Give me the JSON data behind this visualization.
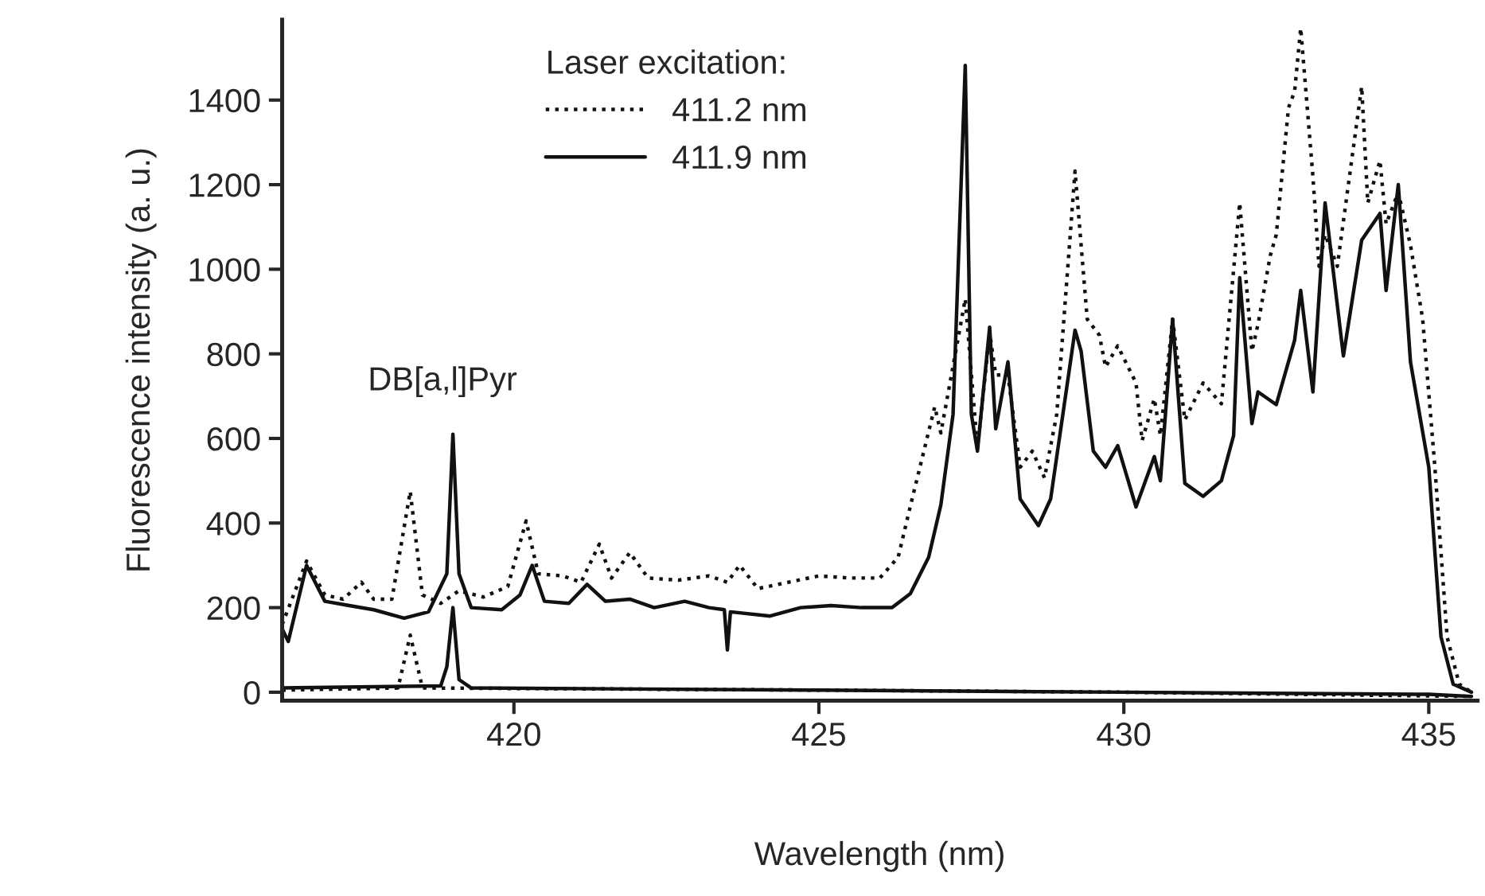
{
  "chart_data": {
    "type": "line",
    "xlabel": "Wavelength (nm)",
    "ylabel": "Fluorescence intensity (a. u.)",
    "legend_title": "Laser excitation:",
    "legend": "top",
    "grid": false,
    "xlim": [
      416.2,
      435.8
    ],
    "xticks": [
      420,
      425,
      430,
      435
    ],
    "ylim": [
      -20,
      1590
    ],
    "yticks": [
      0,
      200,
      400,
      600,
      800,
      1000,
      1200,
      1400
    ],
    "annotations": [
      "DB[a,l]Pyr"
    ],
    "series": [
      {
        "name": "411.2 nm",
        "color": "#111111",
        "line_style": "dotted",
        "x": [
          416.2,
          416.6,
          416.9,
          417.2,
          417.5,
          417.7,
          418.0,
          418.3,
          418.5,
          418.8,
          419.1,
          419.5,
          419.9,
          420.2,
          420.4,
          420.8,
          421.1,
          421.4,
          421.6,
          421.9,
          422.2,
          422.7,
          423.2,
          423.5,
          423.7,
          424.0,
          424.5,
          425.0,
          425.5,
          426.0,
          426.3,
          426.5,
          426.9,
          427.0,
          427.3,
          427.4,
          427.6,
          427.8,
          427.9,
          428.1,
          428.3,
          428.5,
          428.7,
          428.9,
          429.2,
          429.4,
          429.6,
          429.7,
          429.9,
          430.2,
          430.3,
          430.5,
          430.6,
          430.8,
          431.0,
          431.3,
          431.6,
          431.9,
          432.1,
          432.2,
          432.4,
          432.5,
          432.7,
          432.8,
          432.9,
          433.1,
          433.2,
          433.3,
          433.5,
          433.9,
          434.0,
          434.2,
          434.3,
          434.5,
          434.7,
          434.9,
          435.1,
          435.3,
          435.5,
          435.7
        ],
        "values": [
          160,
          310,
          230,
          220,
          260,
          220,
          220,
          475,
          230,
          210,
          240,
          225,
          250,
          405,
          280,
          275,
          260,
          350,
          270,
          330,
          270,
          265,
          275,
          260,
          300,
          245,
          260,
          275,
          270,
          270,
          319,
          440,
          675,
          613,
          850,
          930,
          576,
          850,
          750,
          750,
          532,
          570,
          507,
          657,
          1232,
          882,
          844,
          769,
          819,
          731,
          595,
          694,
          607,
          882,
          644,
          731,
          682,
          1157,
          806,
          870,
          1032,
          1082,
          1382,
          1420,
          1570,
          1220,
          1007,
          1082,
          1007,
          1432,
          1157,
          1257,
          1107,
          1182,
          1057,
          882,
          532,
          131,
          19,
          0
        ]
      },
      {
        "name": "411.9 nm",
        "color": "#111111",
        "line_style": "solid",
        "x": [
          416.2,
          416.3,
          416.6,
          416.9,
          417.3,
          417.7,
          418.2,
          418.6,
          418.9,
          419.0,
          419.1,
          419.3,
          419.8,
          420.1,
          420.3,
          420.5,
          420.9,
          421.2,
          421.5,
          421.9,
          422.3,
          422.8,
          423.2,
          423.45,
          423.5,
          423.55,
          424.2,
          424.7,
          425.2,
          425.7,
          426.2,
          426.5,
          426.8,
          427.0,
          427.2,
          427.4,
          427.5,
          427.6,
          427.8,
          427.9,
          428.1,
          428.3,
          428.6,
          428.8,
          429.2,
          429.3,
          429.5,
          429.7,
          429.9,
          430.2,
          430.5,
          430.6,
          430.8,
          431.0,
          431.3,
          431.6,
          431.8,
          431.9,
          432.1,
          432.2,
          432.5,
          432.8,
          432.9,
          433.1,
          433.3,
          433.6,
          433.9,
          434.2,
          434.3,
          434.5,
          434.7,
          435.0,
          435.2,
          435.4,
          435.7
        ],
        "values": [
          150,
          120,
          300,
          215,
          205,
          195,
          175,
          190,
          280,
          610,
          280,
          200,
          195,
          230,
          300,
          215,
          210,
          255,
          215,
          220,
          200,
          215,
          200,
          195,
          100,
          190,
          180,
          200,
          205,
          200,
          200,
          233,
          319,
          443,
          657,
          1482,
          657,
          570,
          863,
          623,
          781,
          457,
          394,
          457,
          856,
          806,
          570,
          532,
          583,
          438,
          557,
          500,
          882,
          494,
          463,
          500,
          607,
          980,
          635,
          710,
          680,
          832,
          950,
          710,
          1157,
          795,
          1069,
          1132,
          950,
          1200,
          781,
          532,
          131,
          19,
          0
        ]
      },
      {
        "color": "#111111",
        "line_style": "dotted",
        "x": [
          416.2,
          418.1,
          418.3,
          418.5,
          425.0,
          430.0,
          435.7
        ],
        "values": [
          5,
          10,
          135,
          10,
          5,
          0,
          -10
        ]
      },
      {
        "color": "#111111",
        "line_style": "solid",
        "x": [
          416.2,
          418.8,
          418.9,
          419.0,
          419.1,
          419.3,
          425.0,
          430.0,
          435.0,
          435.7
        ],
        "values": [
          10,
          15,
          60,
          200,
          30,
          10,
          5,
          0,
          -5,
          -10
        ]
      }
    ]
  }
}
